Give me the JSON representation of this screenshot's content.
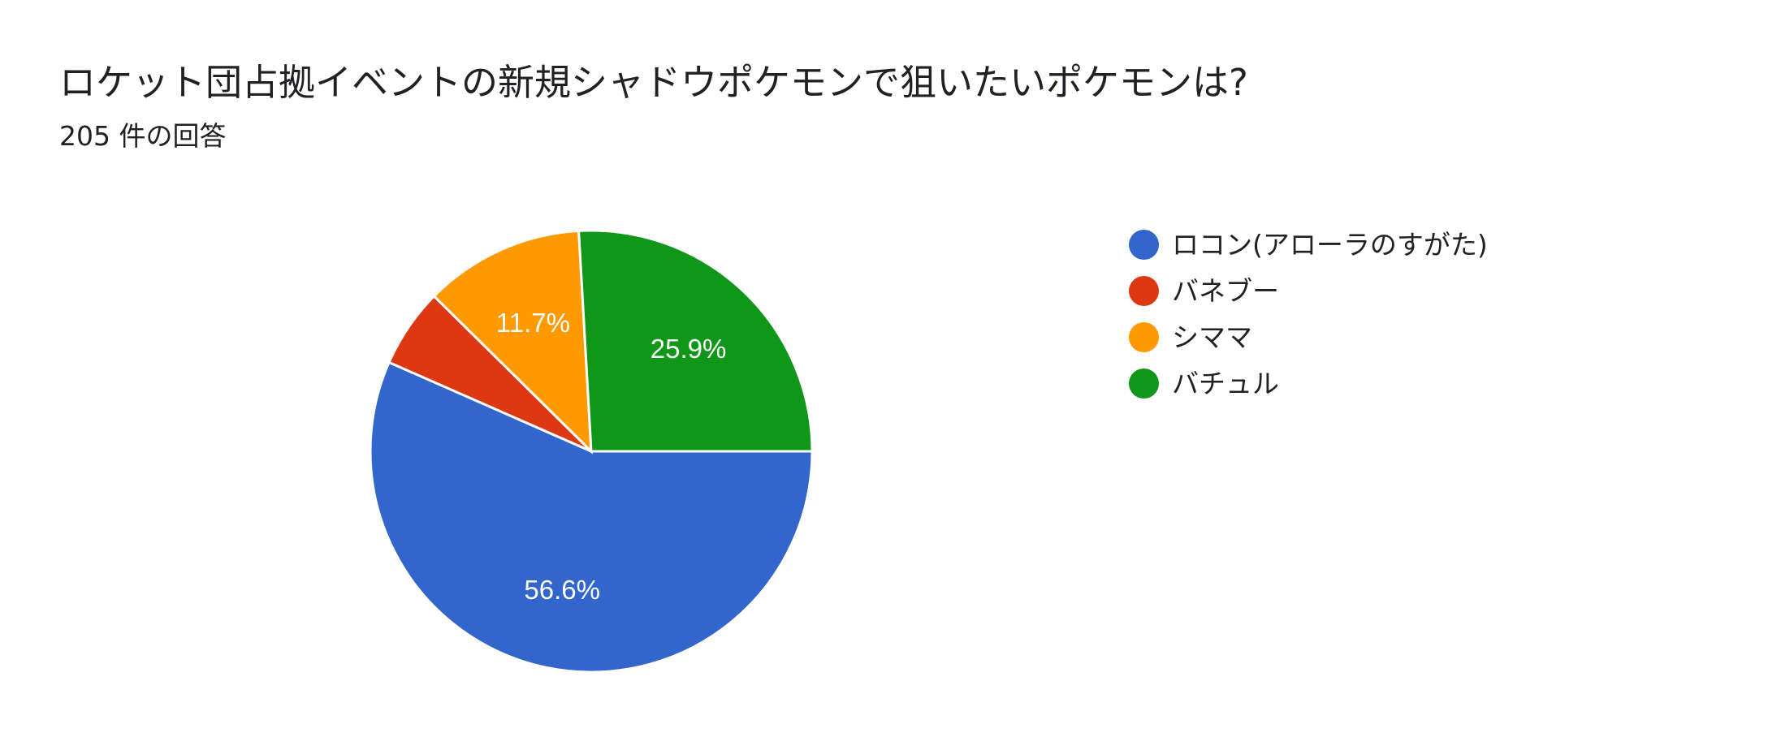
{
  "title": "ロケット団占拠イベントの新規シャドウポケモンで狙いたいポケモンは?",
  "subtitle": "205 件の回答",
  "chart_data": {
    "type": "pie",
    "total_responses": 205,
    "legend_position": "right",
    "slices": [
      {
        "label": "ロコン(アローラのすがた)",
        "percent": 56.6,
        "percent_label": "56.6%",
        "color": "#3366cc"
      },
      {
        "label": "バネブー",
        "percent": 5.8,
        "percent_label": "",
        "color": "#dc3912"
      },
      {
        "label": "シママ",
        "percent": 11.7,
        "percent_label": "11.7%",
        "color": "#ff9900"
      },
      {
        "label": "バチュル",
        "percent": 25.9,
        "percent_label": "25.9%",
        "color": "#109618"
      }
    ]
  }
}
